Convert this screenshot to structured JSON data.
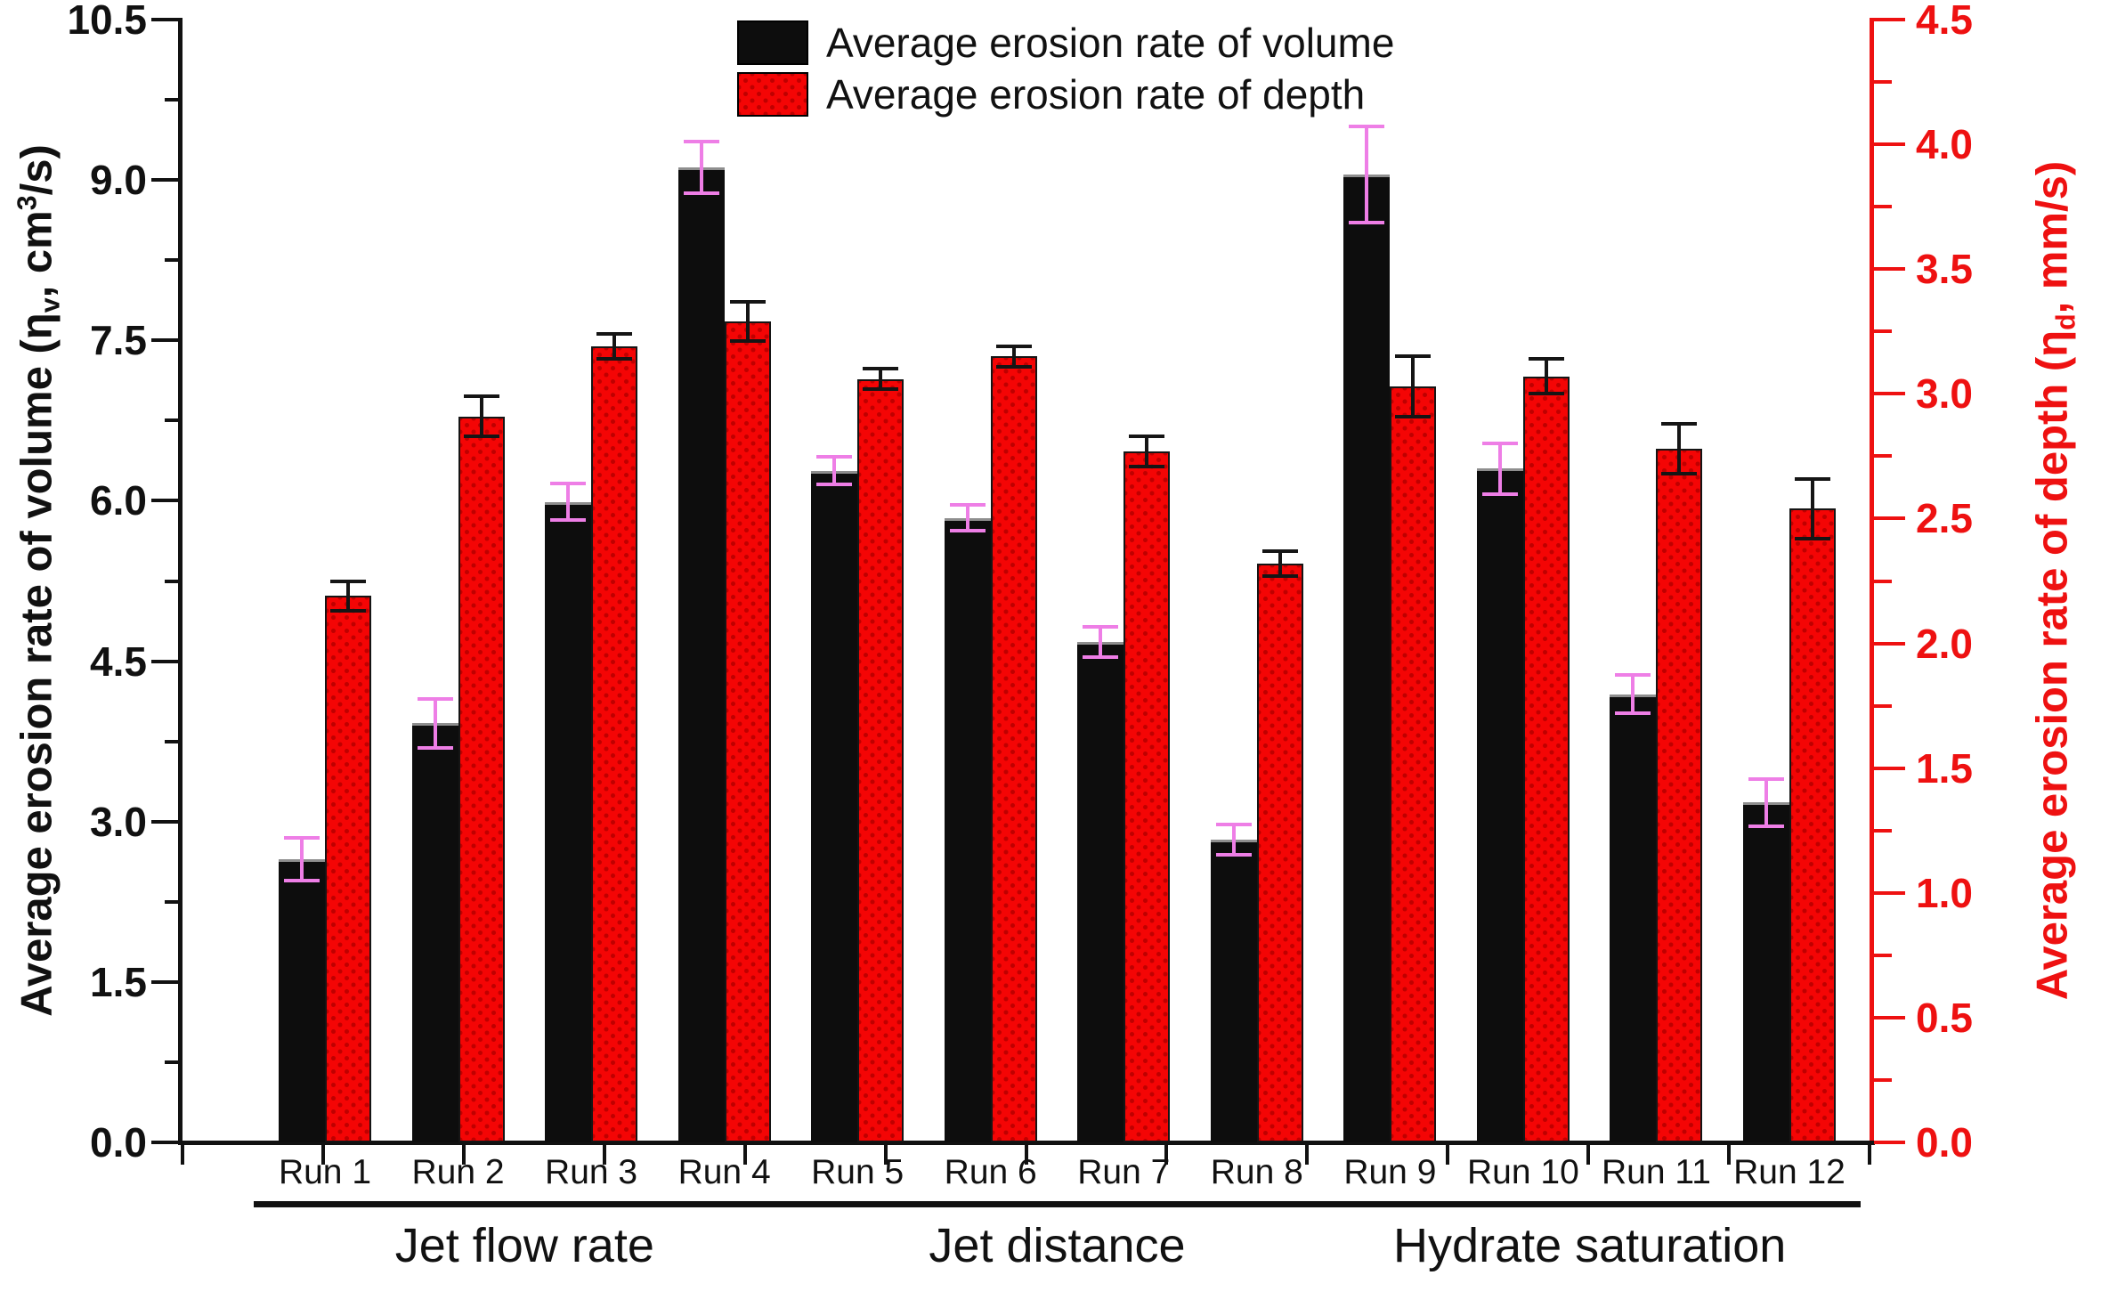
{
  "legend": {
    "items": [
      {
        "label": "Average erosion rate of volume",
        "swatch": "black"
      },
      {
        "label": "Average erosion rate of depth",
        "swatch": "red"
      }
    ]
  },
  "axes": {
    "left": {
      "title_pre": "Average erosion rate of volume (η",
      "title_sub": "v",
      "title_mid": ", cm",
      "title_sup": "3",
      "title_post": "/s)",
      "tick_labels": [
        "0.0",
        "1.5",
        "3.0",
        "4.5",
        "6.0",
        "7.5",
        "9.0",
        "10.5"
      ],
      "color": "#111111"
    },
    "right": {
      "title_pre": "Average erosion rate of depth (η",
      "title_sub": "d",
      "title_mid": ", mm/s)",
      "title_sup": "",
      "title_post": "",
      "tick_labels": [
        "0.0",
        "0.5",
        "1.0",
        "1.5",
        "2.0",
        "2.5",
        "3.0",
        "3.5",
        "4.0",
        "4.5"
      ],
      "color": "#ee1111"
    }
  },
  "chart_data": {
    "type": "bar",
    "categories": [
      "Run 1",
      "Run 2",
      "Run 3",
      "Run 4",
      "Run 5",
      "Run 6",
      "Run 7",
      "Run 8",
      "Run 9",
      "Run 10",
      "Run 11",
      "Run 12"
    ],
    "groups": [
      {
        "label": "Jet flow rate",
        "first": 0,
        "last": 3
      },
      {
        "label": "Jet distance",
        "first": 4,
        "last": 7
      },
      {
        "label": "Hydrate saturation",
        "first": 8,
        "last": 11
      }
    ],
    "series": [
      {
        "name": "Average erosion rate of volume",
        "axis": "left",
        "unit": "cm3/s",
        "bar_color": "#0d0d0d",
        "error_color": "#ee7ee6",
        "values": [
          2.65,
          3.92,
          5.99,
          9.12,
          6.28,
          5.84,
          4.68,
          2.83,
          9.05,
          6.3,
          4.19,
          3.18
        ],
        "errors": [
          0.2,
          0.23,
          0.17,
          0.24,
          0.13,
          0.12,
          0.14,
          0.14,
          0.45,
          0.24,
          0.18,
          0.22
        ]
      },
      {
        "name": "Average erosion rate of depth",
        "axis": "right",
        "unit": "mm/s",
        "bar_color": "#f40505",
        "error_color": "#151515",
        "values": [
          2.19,
          2.91,
          3.19,
          3.29,
          3.06,
          3.15,
          2.77,
          2.32,
          3.03,
          3.07,
          2.78,
          2.54
        ],
        "errors": [
          0.06,
          0.08,
          0.05,
          0.08,
          0.04,
          0.04,
          0.06,
          0.05,
          0.12,
          0.07,
          0.1,
          0.12
        ]
      }
    ],
    "ylim_left": [
      0,
      10.5
    ],
    "ylim_right": [
      0,
      4.5
    ],
    "left_major_step": 1.5,
    "right_major_step": 0.5,
    "grid": "off",
    "legend_position": "top-center"
  }
}
